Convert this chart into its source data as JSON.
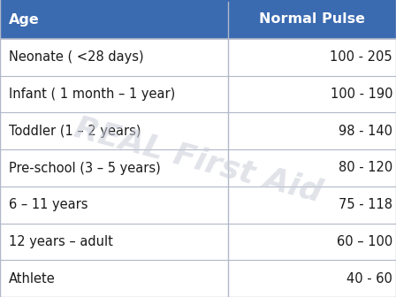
{
  "header": [
    "Age",
    "Normal Pulse"
  ],
  "rows": [
    [
      "Neonate ( <28 days)",
      "100 - 205"
    ],
    [
      "Infant ( 1 month – 1 year)",
      "100 - 190"
    ],
    [
      "Toddler (1 – 2 years)",
      "98 - 140"
    ],
    [
      "Pre-school (3 – 5 years)",
      "80 - 120"
    ],
    [
      "6 – 11 years",
      "75 - 118"
    ],
    [
      "12 years – adult",
      "60 – 100"
    ],
    [
      "Athlete",
      "40 - 60"
    ]
  ],
  "header_bg": "#3a6ab0",
  "header_text_color": "#ffffff",
  "row_bg": "#ffffff",
  "row_text_color": "#1a1a1a",
  "line_color": "#b0b8c8",
  "col_split": 0.575,
  "header_fontsize": 11.5,
  "row_fontsize": 10.5,
  "watermark": "REAL First Aid",
  "watermark_color": "#c8cdd8",
  "watermark_alpha": 0.55
}
